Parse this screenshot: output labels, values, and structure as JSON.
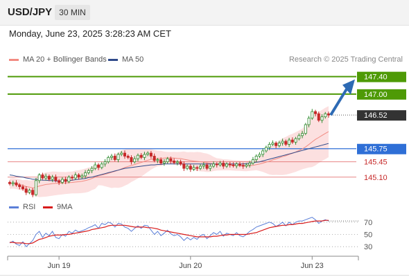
{
  "header": {
    "pair": "USD/JPY",
    "timeframe": "30 MIN"
  },
  "timestamp": "Monday, June 23, 2025 3:28:23 AM CET",
  "legend": [
    {
      "label": "MA 20 + Bollinger Bands",
      "color": "#f28b82"
    },
    {
      "label": "MA 50",
      "color": "#2f4a8a"
    }
  ],
  "credit": "Research © 2025 Trading Central",
  "colors": {
    "up": "#2e8b2e",
    "down": "#c62828",
    "target": "#4e9a06",
    "pivot": "#2f6fd6",
    "support": "#e06666",
    "current": "#333333",
    "arrow": "#2d6ab4",
    "ma20": "#f28b82",
    "ma50": "#2f4a8a",
    "band": "#fcdada",
    "rsi": "#5b7fd8",
    "rsi_ma": "#d81b1b"
  },
  "chart_data": [
    {
      "type": "candlestick",
      "x_labels": [
        "Jun 19",
        "Jun 20",
        "Jun 23"
      ],
      "ylim": [
        144.7,
        147.6
      ],
      "levels": [
        {
          "kind": "target",
          "value": 147.4,
          "label": "147.40"
        },
        {
          "kind": "target",
          "value": 147.0,
          "label": "147.00"
        },
        {
          "kind": "current",
          "value": 146.52,
          "label": "146.52"
        },
        {
          "kind": "pivot",
          "value": 145.75,
          "label": "145.75"
        },
        {
          "kind": "support",
          "value": 145.45,
          "label": "145.45"
        },
        {
          "kind": "support",
          "value": 145.1,
          "label": "145.10"
        }
      ],
      "close": [
        144.95,
        144.97,
        144.92,
        144.88,
        144.83,
        144.75,
        144.8,
        144.7,
        145.02,
        145.15,
        145.08,
        145.12,
        145.05,
        145.1,
        145.02,
        144.98,
        145.05,
        145.0,
        145.1,
        145.08,
        145.15,
        145.1,
        145.13,
        145.2,
        145.25,
        145.3,
        145.38,
        145.32,
        145.4,
        145.45,
        145.55,
        145.58,
        145.5,
        145.62,
        145.65,
        145.58,
        145.55,
        145.45,
        145.52,
        145.6,
        145.55,
        145.62,
        145.65,
        145.58,
        145.48,
        145.5,
        145.42,
        145.45,
        145.52,
        145.47,
        145.43,
        145.45,
        145.4,
        145.3,
        145.35,
        145.28,
        145.32,
        145.3,
        145.35,
        145.38,
        145.3,
        145.35,
        145.4,
        145.38,
        145.42,
        145.35,
        145.4,
        145.38,
        145.36,
        145.4,
        145.37,
        145.35,
        145.38,
        145.42,
        145.5,
        145.58,
        145.62,
        145.7,
        145.78,
        145.85,
        145.88,
        145.82,
        145.88,
        145.92,
        145.85,
        145.95,
        145.9,
        145.98,
        146.05,
        146.1,
        146.3,
        146.45,
        146.6,
        146.55,
        146.4,
        146.48,
        146.55,
        146.52
      ],
      "ma50": [
        145.15,
        145.14,
        145.12,
        145.11,
        145.1,
        145.08,
        145.07,
        145.05,
        145.05,
        145.04,
        145.03,
        145.03,
        145.02,
        145.02,
        145.01,
        145.01,
        145.01,
        145.02,
        145.02,
        145.03,
        145.04,
        145.05,
        145.06,
        145.07,
        145.09,
        145.1,
        145.12,
        145.14,
        145.16,
        145.18,
        145.2,
        145.22,
        145.24,
        145.26,
        145.28,
        145.3,
        145.31,
        145.32,
        145.33,
        145.34,
        145.35,
        145.36,
        145.37,
        145.38,
        145.38,
        145.39,
        145.39,
        145.4,
        145.4,
        145.4,
        145.4,
        145.4,
        145.4,
        145.4,
        145.4,
        145.4,
        145.4,
        145.4,
        145.4,
        145.4,
        145.4,
        145.4,
        145.4,
        145.4,
        145.4,
        145.4,
        145.4,
        145.4,
        145.4,
        145.4,
        145.4,
        145.4,
        145.41,
        145.42,
        145.43,
        145.44,
        145.45,
        145.47,
        145.49,
        145.51,
        145.53,
        145.55,
        145.57,
        145.59,
        145.61,
        145.63,
        145.65,
        145.67,
        145.69,
        145.71,
        145.73,
        145.75,
        145.77,
        145.79,
        145.81,
        145.83,
        145.85,
        145.87
      ],
      "rsi_ylim": [
        20,
        80
      ],
      "rsi_ticks": [
        70,
        50,
        30
      ],
      "rsi_legend": [
        {
          "label": "RSI",
          "color": "#5b7fd8"
        },
        {
          "label": "9MA",
          "color": "#d81b1b"
        }
      ],
      "rsi": [
        36,
        39,
        34,
        32,
        38,
        30,
        35,
        40,
        50,
        55,
        45,
        52,
        48,
        55,
        45,
        43,
        50,
        47,
        55,
        52,
        57,
        54,
        56,
        58,
        61,
        63,
        66,
        60,
        68,
        66,
        70,
        68,
        62,
        68,
        67,
        62,
        60,
        55,
        60,
        64,
        60,
        65,
        64,
        57,
        50,
        55,
        48,
        52,
        57,
        51,
        48,
        50,
        46,
        40,
        45,
        41,
        45,
        42,
        48,
        50,
        43,
        48,
        53,
        50,
        55,
        47,
        52,
        50,
        48,
        53,
        48,
        46,
        50,
        55,
        58,
        62,
        64,
        66,
        68,
        70,
        68,
        63,
        66,
        70,
        64,
        70,
        66,
        70,
        72,
        72,
        74,
        76,
        78,
        74,
        68,
        72,
        74,
        72
      ],
      "rsi_ma": [
        37,
        37,
        36,
        36,
        36,
        35,
        35,
        36,
        39,
        42,
        43,
        45,
        47,
        48,
        49,
        49,
        49,
        50,
        50,
        51,
        52,
        53,
        54,
        55,
        56,
        58,
        59,
        60,
        61,
        62,
        64,
        65,
        65,
        65,
        65,
        65,
        64,
        63,
        62,
        62,
        62,
        62,
        61,
        61,
        60,
        59,
        57,
        56,
        55,
        54,
        53,
        52,
        51,
        50,
        49,
        48,
        47,
        46,
        46,
        46,
        46,
        46,
        47,
        47,
        48,
        49,
        49,
        50,
        50,
        50,
        50,
        50,
        50,
        51,
        52,
        53,
        55,
        57,
        59,
        61,
        62,
        63,
        64,
        65,
        65,
        66,
        66,
        67,
        68,
        68,
        69,
        70,
        71,
        72,
        72,
        72,
        73,
        73
      ]
    }
  ]
}
